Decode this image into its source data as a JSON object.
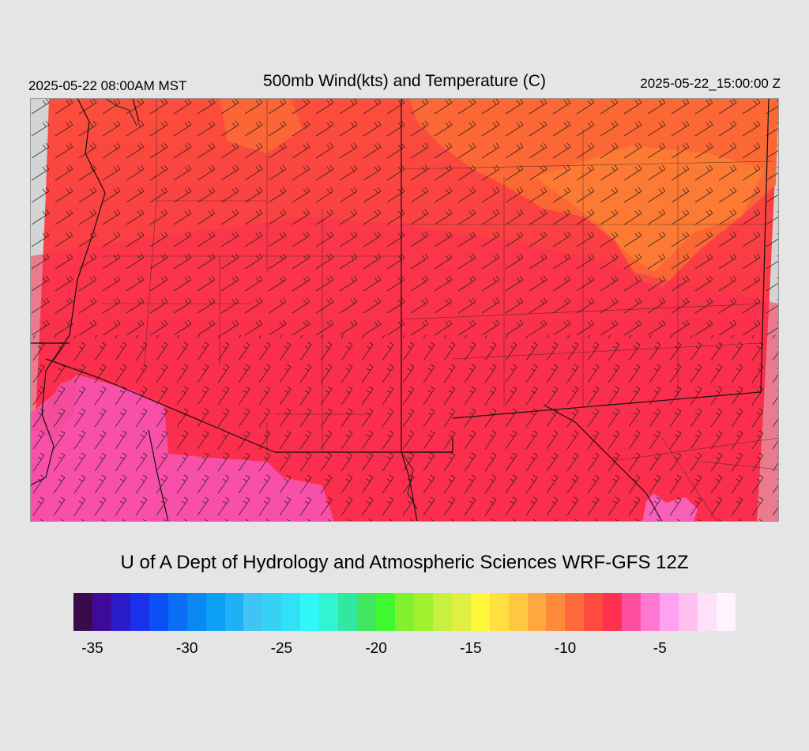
{
  "header": {
    "valid_local": "2025-05-22 08:00AM MST",
    "title": "500mb Wind(kts) and Temperature (C)",
    "valid_utc": "2025-05-22_15:00:00 Z"
  },
  "credit": "U of A Dept of Hydrology and Atmospheric Sciences WRF-GFS 12Z",
  "colorbar": {
    "colors": [
      "#3a0a4a",
      "#3d0a9a",
      "#2a1bc8",
      "#1a30ea",
      "#0a50f5",
      "#0a6ef6",
      "#0a88f4",
      "#0aa0f4",
      "#20b0f4",
      "#40c4f6",
      "#36d2f6",
      "#30e2f8",
      "#30f8f8",
      "#30f4d2",
      "#30e8a0",
      "#40e660",
      "#40f830",
      "#80f030",
      "#a0f030",
      "#c8f040",
      "#e0f040",
      "#fff83a",
      "#ffe040",
      "#ffc840",
      "#ffa840",
      "#ff8a3c",
      "#ff6a3c",
      "#ff4a40",
      "#ff3050",
      "#ff50a0",
      "#ff78d0",
      "#ffa0f0",
      "#ffc0f0",
      "#ffe0fa",
      "#fff4fe"
    ],
    "ticks": [
      {
        "label": "-35",
        "index": 1
      },
      {
        "label": "-30",
        "index": 6
      },
      {
        "label": "-25",
        "index": 11
      },
      {
        "label": "-20",
        "index": 16
      },
      {
        "label": "-15",
        "index": 21
      },
      {
        "label": "-10",
        "index": 26
      },
      {
        "label": "-5",
        "index": 31
      }
    ]
  }
}
